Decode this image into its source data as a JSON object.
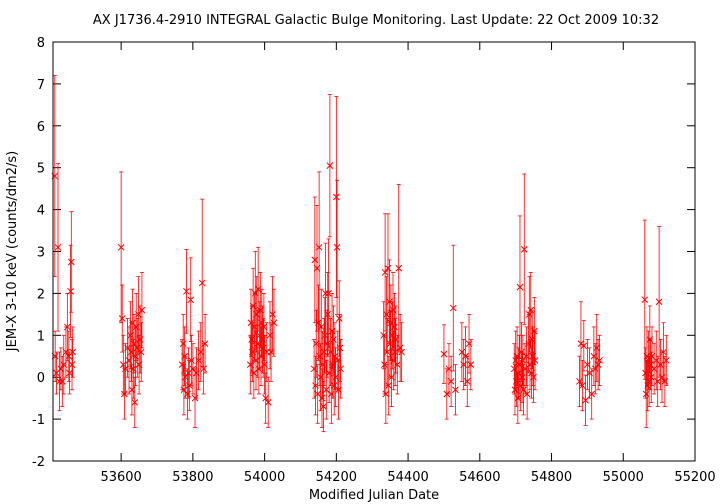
{
  "chart_data": {
    "type": "scatter",
    "title": "AX J1736.4-2910    INTEGRAL Galactic Bulge Monitoring.  Last Update: 22 Oct 2009 10:32",
    "xlabel": "Modified Julian Date",
    "ylabel": "JEM-X 3-10 keV (counts/dm2/s)",
    "xlim": [
      53410,
      55200
    ],
    "ylim": [
      -2,
      8
    ],
    "xticks": [
      "53600",
      "53800",
      "54000",
      "54200",
      "54400",
      "54600",
      "54800",
      "55000",
      "55200"
    ],
    "yticks": [
      "-2",
      "-1",
      "0",
      "1",
      "2",
      "3",
      "4",
      "5",
      "6",
      "7",
      "8"
    ],
    "marker": "x",
    "color": "#ff0000",
    "grid": false,
    "legend": "none",
    "series": [
      {
        "points": [
          [
            53415,
            4.8,
            2.4
          ],
          [
            53416,
            0.5,
            0.6
          ],
          [
            53420,
            0.1,
            0.5
          ],
          [
            53424,
            3.1,
            2.0
          ],
          [
            53428,
            -0.1,
            0.7
          ],
          [
            53432,
            0.2,
            0.5
          ],
          [
            53436,
            -0.1,
            0.6
          ],
          [
            53440,
            0.3,
            0.7
          ],
          [
            53446,
            0.6,
            0.6
          ],
          [
            53450,
            1.2,
            0.8
          ],
          [
            53454,
            0.5,
            0.6
          ],
          [
            53456,
            0.1,
            0.5
          ],
          [
            53459,
            2.05,
            1.1
          ],
          [
            53461,
            2.75,
            1.2
          ],
          [
            53463,
            0.3,
            0.6
          ],
          [
            53465,
            0.6,
            0.6
          ],
          [
            53600,
            3.1,
            1.8
          ],
          [
            53603,
            1.4,
            0.8
          ],
          [
            53606,
            0.3,
            0.7
          ],
          [
            53609,
            -0.4,
            0.6
          ],
          [
            53612,
            0.2,
            0.6
          ],
          [
            53618,
            0.7,
            0.7
          ],
          [
            53622,
            0.4,
            0.8
          ],
          [
            53626,
            1.0,
            0.8
          ],
          [
            53628,
            0.6,
            0.7
          ],
          [
            53630,
            -0.3,
            0.6
          ],
          [
            53632,
            1.3,
            0.8
          ],
          [
            53634,
            0.2,
            0.7
          ],
          [
            53636,
            0.8,
            0.7
          ],
          [
            53638,
            -0.6,
            0.6
          ],
          [
            53640,
            0.5,
            0.7
          ],
          [
            53642,
            1.2,
            0.8
          ],
          [
            53645,
            0.7,
            0.7
          ],
          [
            53648,
            1.5,
            0.9
          ],
          [
            53650,
            0.3,
            0.7
          ],
          [
            53653,
            0.9,
            0.8
          ],
          [
            53656,
            0.6,
            0.7
          ],
          [
            53658,
            1.6,
            0.9
          ],
          [
            53770,
            0.3,
            0.6
          ],
          [
            53773,
            0.8,
            0.7
          ],
          [
            53775,
            -0.3,
            0.6
          ],
          [
            53777,
            0.5,
            0.7
          ],
          [
            53779,
            0.0,
            0.5
          ],
          [
            53782,
            2.05,
            1.0
          ],
          [
            53785,
            -0.4,
            0.6
          ],
          [
            53788,
            0.1,
            0.6
          ],
          [
            53790,
            -0.2,
            0.6
          ],
          [
            53794,
            1.85,
            1.0
          ],
          [
            53796,
            0.4,
            0.6
          ],
          [
            53800,
            0.2,
            0.6
          ],
          [
            53806,
            -0.5,
            0.7
          ],
          [
            53810,
            0.1,
            0.6
          ],
          [
            53816,
            0.4,
            0.7
          ],
          [
            53822,
            0.6,
            0.7
          ],
          [
            53826,
            2.25,
            2.0
          ],
          [
            53830,
            0.2,
            0.6
          ],
          [
            53834,
            0.8,
            0.7
          ],
          [
            53960,
            0.3,
            0.7
          ],
          [
            53962,
            1.3,
            0.8
          ],
          [
            53964,
            0.9,
            0.8
          ],
          [
            53966,
            0.6,
            0.7
          ],
          [
            53968,
            1.7,
            0.9
          ],
          [
            53970,
            0.1,
            0.6
          ],
          [
            53972,
            1.2,
            0.8
          ],
          [
            53974,
            2.0,
            1.0
          ],
          [
            53976,
            0.4,
            0.7
          ],
          [
            53978,
            1.5,
            0.9
          ],
          [
            53980,
            0.8,
            0.8
          ],
          [
            53982,
            2.1,
            1.0
          ],
          [
            53984,
            0.2,
            0.6
          ],
          [
            53986,
            1.0,
            0.8
          ],
          [
            53988,
            1.6,
            0.9
          ],
          [
            53990,
            0.5,
            0.7
          ],
          [
            53992,
            1.3,
            0.8
          ],
          [
            53994,
            0.9,
            0.8
          ],
          [
            53996,
            0.7,
            0.7
          ],
          [
            53998,
            1.2,
            0.8
          ],
          [
            54000,
            0.3,
            0.7
          ],
          [
            54003,
            -0.5,
            0.6
          ],
          [
            54006,
            0.6,
            0.7
          ],
          [
            54010,
            -0.6,
            0.6
          ],
          [
            54015,
            1.0,
            0.8
          ],
          [
            54018,
            0.6,
            0.7
          ],
          [
            54022,
            1.5,
            0.9
          ],
          [
            54026,
            1.3,
            0.8
          ],
          [
            54138,
            0.2,
            0.7
          ],
          [
            54140,
            2.8,
            1.5
          ],
          [
            54142,
            -0.2,
            0.7
          ],
          [
            54144,
            0.8,
            0.8
          ],
          [
            54146,
            2.6,
            1.5
          ],
          [
            54148,
            -0.4,
            0.7
          ],
          [
            54150,
            1.3,
            0.9
          ],
          [
            54152,
            3.1,
            1.8
          ],
          [
            54154,
            0.5,
            0.7
          ],
          [
            54156,
            0.0,
            0.8
          ],
          [
            54158,
            1.2,
            0.9
          ],
          [
            54160,
            -0.5,
            0.7
          ],
          [
            54162,
            0.3,
            0.8
          ],
          [
            54164,
            -0.7,
            0.6
          ],
          [
            54166,
            0.6,
            0.8
          ],
          [
            54168,
            1.0,
            0.9
          ],
          [
            54170,
            2.0,
            1.2
          ],
          [
            54172,
            -0.3,
            0.7
          ],
          [
            54174,
            0.8,
            0.8
          ],
          [
            54176,
            1.5,
            1.0
          ],
          [
            54178,
            2.0,
            1.3
          ],
          [
            54180,
            0.1,
            0.7
          ],
          [
            54182,
            5.05,
            1.7
          ],
          [
            54184,
            0.6,
            0.8
          ],
          [
            54186,
            -0.4,
            0.7
          ],
          [
            54188,
            1.1,
            0.9
          ],
          [
            54190,
            0.3,
            0.8
          ],
          [
            54192,
            0.9,
            0.8
          ],
          [
            54194,
            -0.2,
            0.7
          ],
          [
            54196,
            0.5,
            0.8
          ],
          [
            54198,
            0.0,
            0.7
          ],
          [
            54200,
            4.3,
            2.4
          ],
          [
            54202,
            3.1,
            1.6
          ],
          [
            54204,
            0.4,
            0.7
          ],
          [
            54206,
            -0.3,
            0.7
          ],
          [
            54208,
            1.4,
            0.9
          ],
          [
            54210,
            0.7,
            0.8
          ],
          [
            54212,
            0.2,
            0.7
          ],
          [
            54332,
            1.0,
            0.8
          ],
          [
            54334,
            0.3,
            0.7
          ],
          [
            54336,
            2.5,
            1.4
          ],
          [
            54338,
            -0.4,
            0.7
          ],
          [
            54340,
            1.5,
            0.9
          ],
          [
            54342,
            0.6,
            0.8
          ],
          [
            54344,
            2.6,
            1.3
          ],
          [
            54346,
            -0.2,
            0.7
          ],
          [
            54348,
            1.8,
            1.0
          ],
          [
            54350,
            0.8,
            0.8
          ],
          [
            54352,
            1.3,
            0.9
          ],
          [
            54354,
            0.0,
            0.7
          ],
          [
            54356,
            1.0,
            0.8
          ],
          [
            54358,
            1.6,
            0.9
          ],
          [
            54360,
            0.4,
            0.7
          ],
          [
            54362,
            1.2,
            0.8
          ],
          [
            54364,
            0.6,
            0.8
          ],
          [
            54366,
            0.9,
            0.8
          ],
          [
            54370,
            0.3,
            0.7
          ],
          [
            54374,
            2.6,
            2.0
          ],
          [
            54378,
            0.7,
            0.8
          ],
          [
            54382,
            0.6,
            0.7
          ],
          [
            54500,
            0.55,
            0.7
          ],
          [
            54508,
            -0.4,
            0.6
          ],
          [
            54514,
            0.2,
            0.6
          ],
          [
            54520,
            -0.1,
            0.6
          ],
          [
            54526,
            1.65,
            1.5
          ],
          [
            54532,
            -0.3,
            0.6
          ],
          [
            54550,
            0.6,
            0.7
          ],
          [
            54555,
            0.3,
            0.6
          ],
          [
            54560,
            0.5,
            0.7
          ],
          [
            54565,
            -0.1,
            0.6
          ],
          [
            54570,
            0.8,
            0.7
          ],
          [
            54575,
            0.3,
            0.6
          ],
          [
            54696,
            0.2,
            0.6
          ],
          [
            54698,
            -0.3,
            0.6
          ],
          [
            54700,
            0.4,
            0.7
          ],
          [
            54702,
            -0.1,
            0.6
          ],
          [
            54704,
            0.5,
            0.7
          ],
          [
            54706,
            -0.5,
            0.6
          ],
          [
            54708,
            0.1,
            0.6
          ],
          [
            54710,
            0.3,
            0.7
          ],
          [
            54712,
            2.15,
            1.7
          ],
          [
            54714,
            -0.2,
            0.6
          ],
          [
            54716,
            0.6,
            0.7
          ],
          [
            54718,
            0.0,
            0.6
          ],
          [
            54720,
            0.4,
            0.6
          ],
          [
            54722,
            -0.3,
            0.6
          ],
          [
            54724,
            3.05,
            1.8
          ],
          [
            54726,
            0.2,
            0.6
          ],
          [
            54730,
            0.5,
            0.7
          ],
          [
            54732,
            -0.4,
            0.6
          ],
          [
            54736,
            0.8,
            0.7
          ],
          [
            54738,
            1.5,
            0.9
          ],
          [
            54740,
            0.3,
            0.6
          ],
          [
            54742,
            1.6,
            0.9
          ],
          [
            54744,
            0.1,
            0.6
          ],
          [
            54746,
            0.9,
            0.7
          ],
          [
            54748,
            0.5,
            0.7
          ],
          [
            54750,
            0.0,
            0.6
          ],
          [
            54752,
            1.1,
            0.8
          ],
          [
            54754,
            0.4,
            0.7
          ],
          [
            54878,
            -0.1,
            0.6
          ],
          [
            54882,
            0.8,
            1.0
          ],
          [
            54886,
            -0.2,
            0.6
          ],
          [
            54890,
            0.75,
            0.6
          ],
          [
            54895,
            -0.55,
            0.6
          ],
          [
            54900,
            0.3,
            0.6
          ],
          [
            54906,
            0.1,
            0.6
          ],
          [
            54912,
            -0.4,
            0.6
          ],
          [
            54918,
            0.5,
            0.7
          ],
          [
            54922,
            0.2,
            0.6
          ],
          [
            54926,
            0.7,
            0.8
          ],
          [
            54930,
            0.3,
            0.6
          ],
          [
            54934,
            0.4,
            0.6
          ],
          [
            55060,
            1.85,
            1.9
          ],
          [
            55062,
            0.1,
            0.6
          ],
          [
            55064,
            -0.4,
            0.8
          ],
          [
            55066,
            0.5,
            0.7
          ],
          [
            55068,
            -0.2,
            0.6
          ],
          [
            55070,
            0.4,
            0.7
          ],
          [
            55072,
            -0.1,
            0.6
          ],
          [
            55074,
            0.9,
            0.8
          ],
          [
            55076,
            0.3,
            0.6
          ],
          [
            55078,
            0.0,
            0.6
          ],
          [
            55080,
            0.5,
            0.7
          ],
          [
            55086,
            0.2,
            0.6
          ],
          [
            55092,
            0.4,
            0.7
          ],
          [
            55096,
            -0.1,
            0.6
          ],
          [
            55100,
            1.8,
            1.8
          ],
          [
            55104,
            0.3,
            0.6
          ],
          [
            55108,
            0.0,
            0.6
          ],
          [
            55112,
            0.6,
            0.7
          ],
          [
            55116,
            -0.1,
            0.6
          ],
          [
            55120,
            0.4,
            0.6
          ]
        ]
      }
    ]
  }
}
